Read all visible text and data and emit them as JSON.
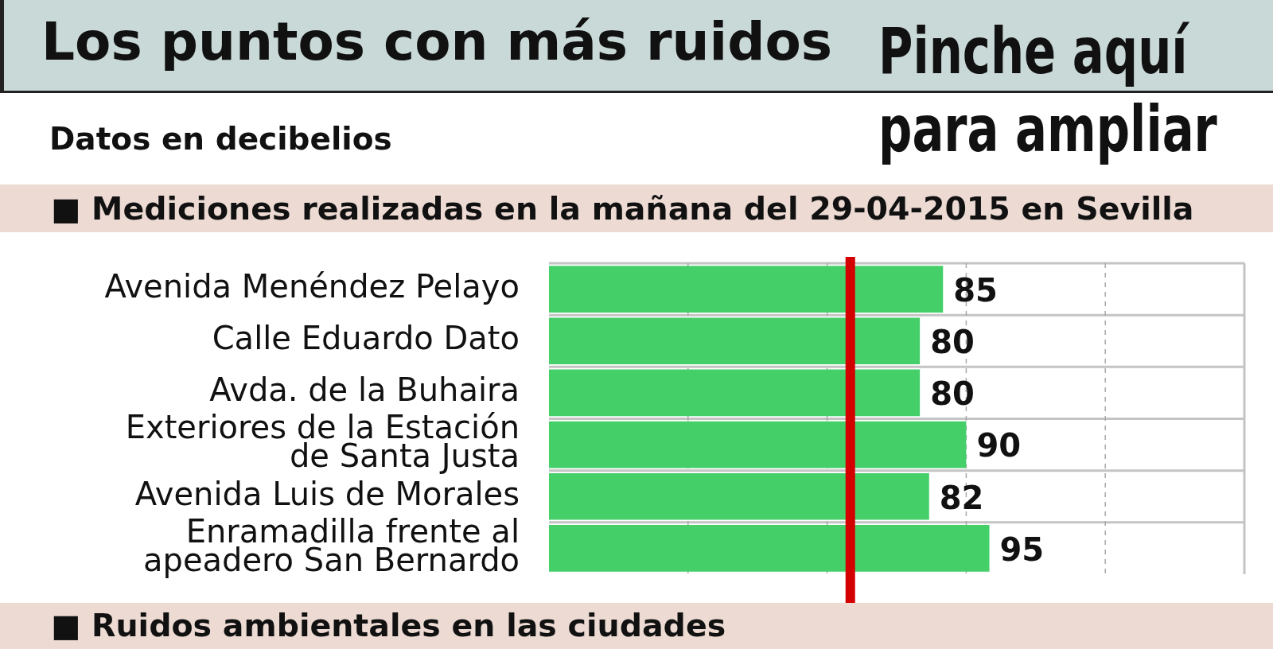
{
  "chart_data": {
    "type": "bar",
    "orientation": "horizontal",
    "title": "Los puntos con más ruidos",
    "subtitle": "Datos en decibelios",
    "annotations": [
      "Pinche aquí para ampliar",
      "■ Mediciones realizadas en la mañana del 29-04-2015 en Sevilla",
      "■ Ruidos ambientales en las ciudades"
    ],
    "categories": [
      "Avenida Menéndez Pelayo",
      "Calle Eduardo Dato",
      "Avda. de la Buhaira",
      "Exteriores de la Estación de Santa Justa",
      "Avenida Luis de Morales",
      "Enramadilla frente al apeadero San Bernardo"
    ],
    "values": [
      85,
      80,
      80,
      90,
      82,
      95
    ],
    "color": "#45cf69",
    "data_labels": true,
    "xlim": [
      0,
      150
    ],
    "xticks": [
      {
        "value": 30,
        "label": null
      },
      {
        "value": 60,
        "label": null
      },
      {
        "value": 90,
        "label": null
      },
      {
        "value": 120,
        "label": null
      }
    ],
    "grid": true,
    "legend": false,
    "tick_labels": "y",
    "ref_lines": [
      {
        "axis": "x",
        "value": 65,
        "color": "#d40000"
      }
    ]
  }
}
